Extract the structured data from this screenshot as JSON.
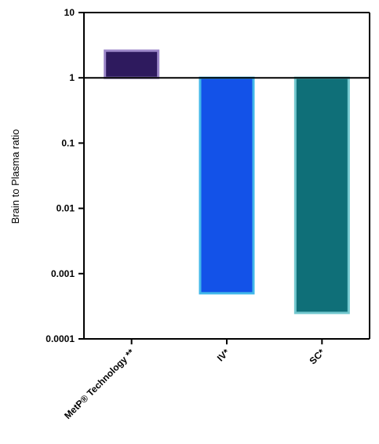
{
  "chart_data": {
    "type": "bar",
    "scale": "log",
    "baseline": 1,
    "ylabel": "Brain to Plasma ratio",
    "ylim": [
      0.0001,
      10
    ],
    "yticks": [
      "0.0001",
      "0.001",
      "0.01",
      "0.1",
      "1",
      "10"
    ],
    "grid": false,
    "categories": [
      "MetP® Technology **",
      "IV*",
      "SC*"
    ],
    "values": [
      2.6,
      0.0005,
      0.00025
    ],
    "fill_colors": [
      "#2e1a5e",
      "#1352e8",
      "#0f6f78"
    ],
    "edge_colors": [
      "#9b86c8",
      "#41b8ea",
      "#73c8cf"
    ]
  }
}
